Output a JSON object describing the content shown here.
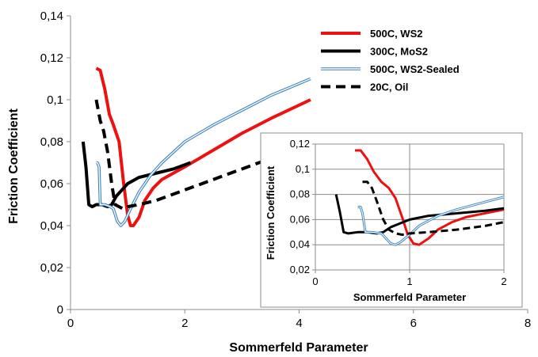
{
  "chart_data": [
    {
      "type": "line",
      "title": "",
      "xlabel": "Sommerfeld Parameter",
      "ylabel": "Friction Coefficient",
      "xlim": [
        0,
        8
      ],
      "ylim": [
        0,
        0.14
      ],
      "xticks": [
        "0",
        "2",
        "4",
        "6",
        "8"
      ],
      "yticks": [
        "0",
        "0,02",
        "0,04",
        "0,06",
        "0,08",
        "0,1",
        "0,12",
        "0,14"
      ],
      "grid": false,
      "legend_position": "top-right",
      "series": [
        {
          "name": "500C, WS2",
          "color": "#ee1111",
          "style": "solid",
          "x": [
            0.45,
            0.52,
            0.6,
            0.68,
            0.75,
            0.85,
            0.93,
            1.0,
            1.05,
            1.1,
            1.2,
            1.3,
            1.45,
            1.6,
            1.8,
            2.0,
            2.5,
            3.0,
            3.5,
            4.2
          ],
          "y": [
            0.115,
            0.114,
            0.105,
            0.093,
            0.088,
            0.08,
            0.06,
            0.045,
            0.04,
            0.04,
            0.044,
            0.052,
            0.058,
            0.062,
            0.065,
            0.068,
            0.076,
            0.084,
            0.091,
            0.1
          ]
        },
        {
          "name": "300C, MoS2",
          "color": "#000000",
          "style": "solid",
          "x": [
            0.22,
            0.27,
            0.32,
            0.38,
            0.45,
            0.55,
            0.65,
            0.72,
            0.8,
            0.9,
            1.0,
            1.2,
            1.5,
            1.8,
            2.1
          ],
          "y": [
            0.08,
            0.068,
            0.05,
            0.049,
            0.05,
            0.05,
            0.049,
            0.05,
            0.054,
            0.057,
            0.06,
            0.063,
            0.065,
            0.067,
            0.07
          ]
        },
        {
          "name": "500C, WS2-Sealed",
          "color": "#3a82c4",
          "style": "double",
          "x": [
            0.45,
            0.47,
            0.5,
            0.52,
            0.6,
            0.7,
            0.75,
            0.82,
            0.88,
            0.95,
            1.05,
            1.2,
            1.4,
            1.6,
            2.0,
            2.5,
            3.0,
            3.5,
            4.2
          ],
          "y": [
            0.07,
            0.07,
            0.068,
            0.05,
            0.05,
            0.049,
            0.048,
            0.042,
            0.04,
            0.042,
            0.048,
            0.056,
            0.064,
            0.07,
            0.08,
            0.088,
            0.095,
            0.102,
            0.11
          ]
        },
        {
          "name": "20C, Oil",
          "color": "#000000",
          "style": "dashed",
          "x": [
            0.45,
            0.52,
            0.58,
            0.65,
            0.72,
            0.78,
            0.85,
            0.92,
            1.0,
            1.2,
            1.5,
            2.0,
            2.5,
            3.0,
            3.5
          ],
          "y": [
            0.1,
            0.09,
            0.085,
            0.075,
            0.06,
            0.05,
            0.049,
            0.048,
            0.049,
            0.05,
            0.052,
            0.057,
            0.062,
            0.067,
            0.072
          ]
        }
      ]
    },
    {
      "type": "line",
      "title": "",
      "xlabel": "Sommerfeld Parameter",
      "ylabel": "Friction Coefficient",
      "xlim": [
        0,
        2
      ],
      "ylim": [
        0.02,
        0.12
      ],
      "xticks": [
        "0",
        "1",
        "2"
      ],
      "yticks": [
        "0,02",
        "0,04",
        "0,06",
        "0,08",
        "0,1",
        "0,12"
      ],
      "grid": true,
      "series": [
        {
          "color": "#ee1111",
          "style": "solid",
          "x": [
            0.42,
            0.48,
            0.55,
            0.62,
            0.7,
            0.78,
            0.85,
            0.92,
            0.98,
            1.04,
            1.1,
            1.2,
            1.3,
            1.45,
            1.6,
            1.8,
            2.0
          ],
          "y": [
            0.115,
            0.115,
            0.108,
            0.098,
            0.09,
            0.085,
            0.077,
            0.062,
            0.048,
            0.041,
            0.04,
            0.045,
            0.052,
            0.058,
            0.062,
            0.065,
            0.068
          ]
        },
        {
          "color": "#000000",
          "style": "solid",
          "x": [
            0.22,
            0.26,
            0.3,
            0.35,
            0.45,
            0.55,
            0.65,
            0.72,
            0.8,
            0.9,
            1.0,
            1.2,
            1.5,
            1.8,
            2.0
          ],
          "y": [
            0.08,
            0.066,
            0.05,
            0.049,
            0.05,
            0.05,
            0.049,
            0.05,
            0.054,
            0.057,
            0.06,
            0.063,
            0.065,
            0.067,
            0.069
          ]
        },
        {
          "color": "#3a82c4",
          "style": "double",
          "x": [
            0.45,
            0.48,
            0.5,
            0.53,
            0.6,
            0.7,
            0.75,
            0.8,
            0.85,
            0.9,
            1.0,
            1.1,
            1.3,
            1.5,
            1.7,
            2.0
          ],
          "y": [
            0.07,
            0.07,
            0.065,
            0.05,
            0.05,
            0.049,
            0.045,
            0.041,
            0.04,
            0.042,
            0.048,
            0.055,
            0.063,
            0.068,
            0.072,
            0.078
          ]
        },
        {
          "color": "#000000",
          "style": "dashed",
          "x": [
            0.5,
            0.55,
            0.6,
            0.65,
            0.72,
            0.78,
            0.85,
            0.92,
            1.0,
            1.2,
            1.5,
            1.8,
            2.0
          ],
          "y": [
            0.09,
            0.09,
            0.085,
            0.075,
            0.06,
            0.052,
            0.049,
            0.048,
            0.049,
            0.05,
            0.052,
            0.055,
            0.058
          ]
        }
      ]
    }
  ]
}
